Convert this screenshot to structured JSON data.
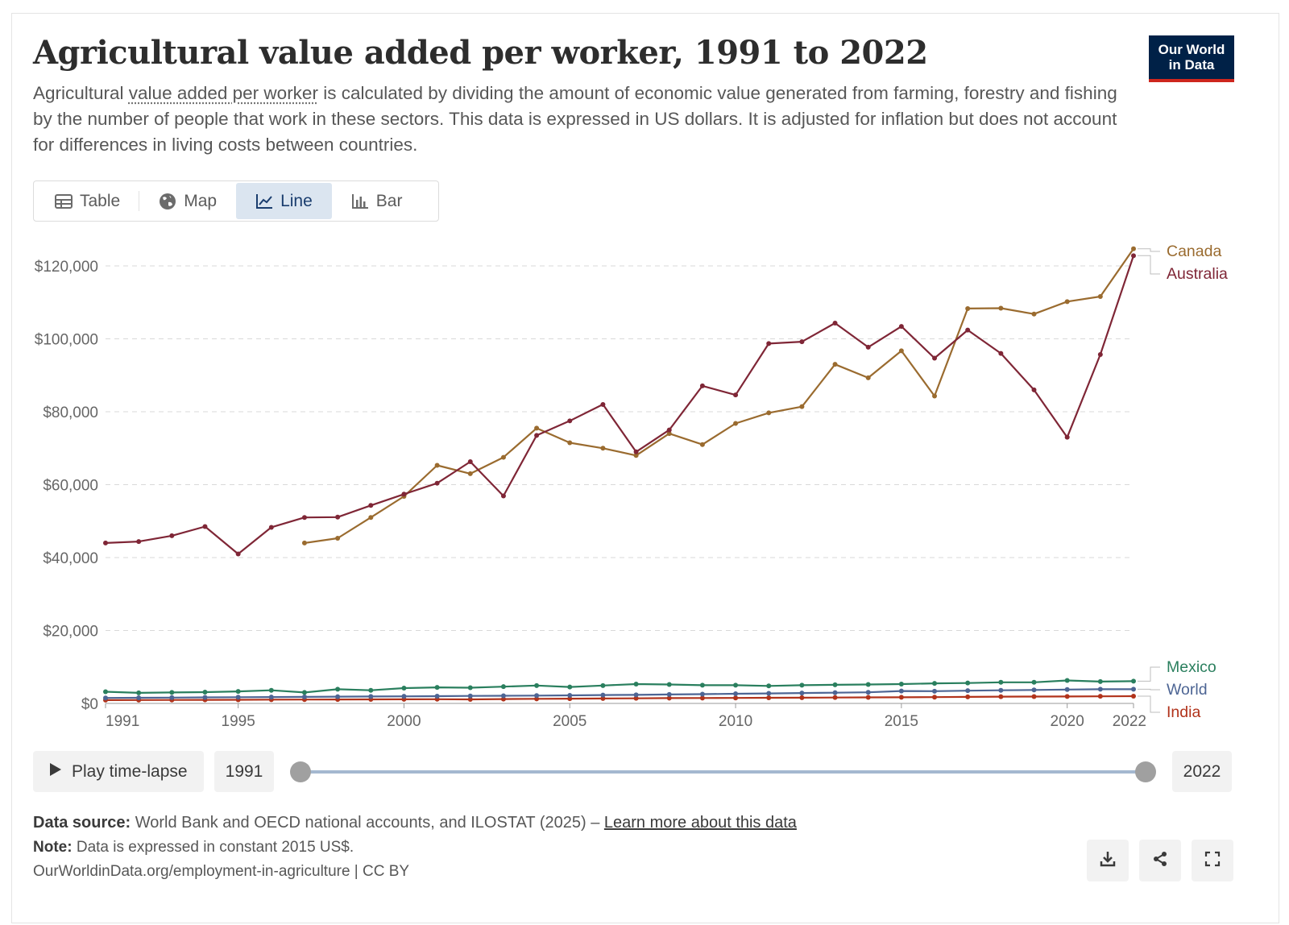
{
  "header": {
    "title": "Agricultural value added per worker, 1991 to 2022",
    "subtitle_prefix": "Agricultural ",
    "subtitle_term": "value added per worker",
    "subtitle_rest": " is calculated by dividing the amount of economic value generated from farming, forestry and fishing by the number of people that work in these sectors. This data is expressed in US dollars. It is adjusted for inflation but does not account for differences in living costs between countries.",
    "logo_line1": "Our World",
    "logo_line2": "in Data"
  },
  "tabs": [
    {
      "label": "Table",
      "icon": "table-icon"
    },
    {
      "label": "Map",
      "icon": "globe-icon"
    },
    {
      "label": "Line",
      "icon": "line-chart-icon",
      "active": true
    },
    {
      "label": "Bar",
      "icon": "bar-chart-icon"
    }
  ],
  "colors": {
    "Canada": "#9a6b2f",
    "Australia": "#7f2636",
    "Mexico": "#2a7f5e",
    "World": "#4d6594",
    "India": "#b1331b"
  },
  "chart_data": {
    "type": "line",
    "title": "Agricultural value added per worker, 1991 to 2022",
    "xlim": [
      1991,
      2022
    ],
    "ylim": [
      0,
      120000
    ],
    "y_ticks": [
      0,
      20000,
      40000,
      60000,
      80000,
      100000,
      120000
    ],
    "y_tick_labels": [
      "$0",
      "$20,000",
      "$40,000",
      "$60,000",
      "$80,000",
      "$100,000",
      "$120,000"
    ],
    "x_ticks": [
      1991,
      1995,
      2000,
      2005,
      2010,
      2015,
      2020,
      2022
    ],
    "x_tick_labels": [
      "1991",
      "1995",
      "2000",
      "2005",
      "2010",
      "2015",
      "2020",
      "2022"
    ],
    "grid": "horizontal dashed",
    "legend": "right end labels",
    "series": [
      {
        "name": "Canada",
        "x": [
          1997,
          1998,
          1999,
          2000,
          2001,
          2002,
          2003,
          2004,
          2005,
          2006,
          2007,
          2008,
          2009,
          2010,
          2011,
          2012,
          2013,
          2014,
          2015,
          2016,
          2017,
          2018,
          2019,
          2020,
          2021,
          2022
        ],
        "values": [
          44000,
          45300,
          51000,
          56800,
          65300,
          63000,
          67500,
          75500,
          71500,
          70000,
          68000,
          74000,
          71000,
          76800,
          79700,
          81400,
          93000,
          89300,
          96700,
          84300,
          108300,
          108400,
          106800,
          110200,
          111600,
          124700
        ]
      },
      {
        "name": "Australia",
        "x": [
          1991,
          1992,
          1993,
          1994,
          1995,
          1996,
          1997,
          1998,
          1999,
          2000,
          2001,
          2002,
          2003,
          2004,
          2005,
          2006,
          2007,
          2008,
          2009,
          2010,
          2011,
          2012,
          2013,
          2014,
          2015,
          2016,
          2017,
          2018,
          2019,
          2020,
          2021,
          2022
        ],
        "values": [
          44000,
          44400,
          46000,
          48500,
          41000,
          48300,
          51000,
          51100,
          54300,
          57400,
          60400,
          66300,
          56900,
          73500,
          77500,
          82000,
          69000,
          75000,
          87100,
          84600,
          98700,
          99200,
          104300,
          97700,
          103400,
          94700,
          102400,
          96000,
          86000,
          73000,
          95700,
          122800
        ]
      },
      {
        "name": "Mexico",
        "x": [
          1991,
          1992,
          1993,
          1994,
          1995,
          1996,
          1997,
          1998,
          1999,
          2000,
          2001,
          2002,
          2003,
          2004,
          2005,
          2006,
          2007,
          2008,
          2009,
          2010,
          2011,
          2012,
          2013,
          2014,
          2015,
          2016,
          2017,
          2018,
          2019,
          2020,
          2021,
          2022
        ],
        "values": [
          3200,
          2900,
          3000,
          3100,
          3300,
          3600,
          3000,
          3900,
          3600,
          4200,
          4400,
          4300,
          4600,
          4900,
          4500,
          4900,
          5300,
          5200,
          5000,
          5000,
          4800,
          5000,
          5100,
          5200,
          5300,
          5500,
          5600,
          5800,
          5800,
          6300,
          6000,
          6100
        ]
      },
      {
        "name": "World",
        "x": [
          1991,
          1992,
          1993,
          1994,
          1995,
          1996,
          1997,
          1998,
          1999,
          2000,
          2001,
          2002,
          2003,
          2004,
          2005,
          2006,
          2007,
          2008,
          2009,
          2010,
          2011,
          2012,
          2013,
          2014,
          2015,
          2016,
          2017,
          2018,
          2019,
          2020,
          2021,
          2022
        ],
        "values": [
          1500,
          1550,
          1600,
          1650,
          1700,
          1750,
          1800,
          1850,
          1900,
          1950,
          2000,
          2050,
          2100,
          2150,
          2200,
          2300,
          2350,
          2450,
          2550,
          2650,
          2750,
          2850,
          2950,
          3050,
          3400,
          3350,
          3500,
          3600,
          3700,
          3800,
          3900,
          3900
        ]
      },
      {
        "name": "India",
        "x": [
          1991,
          1992,
          1993,
          1994,
          1995,
          1996,
          1997,
          1998,
          1999,
          2000,
          2001,
          2002,
          2003,
          2004,
          2005,
          2006,
          2007,
          2008,
          2009,
          2010,
          2011,
          2012,
          2013,
          2014,
          2015,
          2016,
          2017,
          2018,
          2019,
          2020,
          2021,
          2022
        ],
        "values": [
          900,
          920,
          950,
          980,
          1000,
          1030,
          1050,
          1080,
          1100,
          1120,
          1150,
          1100,
          1200,
          1250,
          1300,
          1350,
          1400,
          1450,
          1470,
          1500,
          1550,
          1580,
          1620,
          1650,
          1680,
          1720,
          1800,
          1850,
          1880,
          1900,
          1950,
          2000
        ]
      }
    ]
  },
  "timeline": {
    "play_label": "Play time-lapse",
    "start_year": "1991",
    "end_year": "2022"
  },
  "footer": {
    "source_label": "Data source:",
    "source_text": " World Bank and OECD national accounts, and ILOSTAT (2025) – ",
    "source_link": "Learn more about this data",
    "note_label": "Note:",
    "note_text": " Data is expressed in constant 2015 US$.",
    "url_text": "OurWorldinData.org/employment-in-agriculture | CC BY"
  }
}
